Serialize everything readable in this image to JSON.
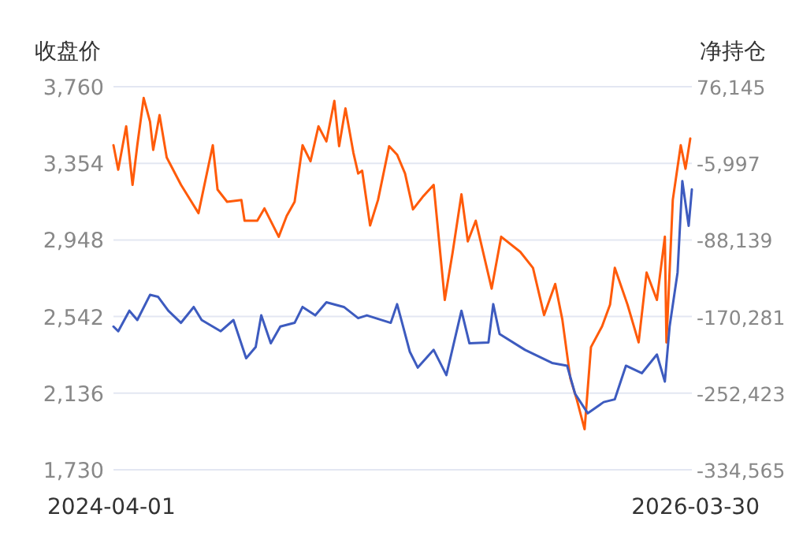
{
  "chart_data": {
    "type": "line",
    "ylabel": "收盘价",
    "y2label": "净持仓",
    "grid": "y",
    "line_style": "solid",
    "xlim": [
      "2024-04-01",
      "2026-03-30"
    ],
    "xticks": [
      "2024-04-01",
      "2026-03-30"
    ],
    "ylim": [
      1730,
      3760
    ],
    "yticks": [
      {
        "value": 1730,
        "label": "1,730"
      },
      {
        "value": 2136,
        "label": "2,136"
      },
      {
        "value": 2542,
        "label": "2,542"
      },
      {
        "value": 2948,
        "label": "2,948"
      },
      {
        "value": 3354,
        "label": "3,354"
      },
      {
        "value": 3760,
        "label": "3,760"
      }
    ],
    "y2lim": [
      -334565,
      76145
    ],
    "y2ticks": [
      {
        "value": -334565,
        "label": "-334,565"
      },
      {
        "value": -252423,
        "label": "-252,423"
      },
      {
        "value": -170281,
        "label": "-170,281"
      },
      {
        "value": -88139,
        "label": "-88,139"
      },
      {
        "value": -5997,
        "label": "-5,997"
      },
      {
        "value": 76145,
        "label": "76,145"
      }
    ],
    "series": [
      {
        "color": "#ff5b0a",
        "axis": "y",
        "x": [
          "2024-04-01",
          "2024-04-07",
          "2024-04-17",
          "2024-04-25",
          "2024-05-01",
          "2024-05-09",
          "2024-05-17",
          "2024-05-21",
          "2024-05-29",
          "2024-06-07",
          "2024-06-25",
          "2024-07-17",
          "2024-08-04",
          "2024-08-10",
          "2024-08-22",
          "2024-09-09",
          "2024-09-13",
          "2024-09-29",
          "2024-10-08",
          "2024-10-26",
          "2024-11-05",
          "2024-11-15",
          "2024-11-25",
          "2024-12-05",
          "2024-12-15",
          "2024-12-25",
          "2025-01-04",
          "2025-01-10",
          "2025-01-18",
          "2025-01-28",
          "2025-02-03",
          "2025-02-08",
          "2025-02-18",
          "2025-02-28",
          "2025-03-14",
          "2025-03-24",
          "2025-04-03",
          "2025-04-13",
          "2025-04-25",
          "2025-05-09",
          "2025-05-23",
          "2025-06-02",
          "2025-06-13",
          "2025-06-21",
          "2025-07-01",
          "2025-07-21",
          "2025-08-02",
          "2025-08-26",
          "2025-09-11",
          "2025-09-25",
          "2025-10-09",
          "2025-10-18",
          "2025-10-28",
          "2025-11-05",
          "2025-11-15",
          "2025-11-23",
          "2025-12-07",
          "2025-12-17",
          "2025-12-23",
          "2026-01-08",
          "2026-01-22",
          "2026-02-01",
          "2026-02-14",
          "2026-02-24",
          "2026-02-26",
          "2026-03-06",
          "2026-03-16",
          "2026-03-22",
          "2026-03-28"
        ],
        "values": [
          3450,
          3320,
          3550,
          3240,
          3450,
          3700,
          3575,
          3425,
          3610,
          3385,
          3240,
          3090,
          3450,
          3215,
          3150,
          3160,
          3050,
          3050,
          3115,
          2965,
          3075,
          3150,
          3450,
          3365,
          3550,
          3470,
          3685,
          3445,
          3645,
          3410,
          3300,
          3315,
          3025,
          3160,
          3445,
          3400,
          3300,
          3110,
          3175,
          3240,
          2630,
          2885,
          3190,
          2940,
          3050,
          2690,
          2965,
          2885,
          2800,
          2550,
          2715,
          2525,
          2215,
          2105,
          1945,
          2380,
          2490,
          2605,
          2800,
          2605,
          2405,
          2775,
          2630,
          2965,
          2405,
          3160,
          3450,
          3325,
          3485
        ]
      },
      {
        "color": "#3d5bbf",
        "axis": "y2",
        "x": [
          "2024-04-01",
          "2024-04-07",
          "2024-04-21",
          "2024-05-01",
          "2024-05-17",
          "2024-05-27",
          "2024-06-09",
          "2024-06-25",
          "2024-07-11",
          "2024-07-21",
          "2024-08-14",
          "2024-08-30",
          "2024-09-15",
          "2024-09-27",
          "2024-10-04",
          "2024-10-16",
          "2024-10-28",
          "2024-11-15",
          "2024-11-25",
          "2024-12-11",
          "2024-12-25",
          "2025-01-16",
          "2025-02-03",
          "2025-02-14",
          "2025-03-16",
          "2025-03-24",
          "2025-04-09",
          "2025-04-19",
          "2025-05-09",
          "2025-05-25",
          "2025-06-13",
          "2025-06-23",
          "2025-07-17",
          "2025-07-23",
          "2025-07-31",
          "2025-09-01",
          "2025-10-05",
          "2025-10-24",
          "2025-11-03",
          "2025-11-19",
          "2025-12-09",
          "2025-12-23",
          "2026-01-06",
          "2026-01-26",
          "2026-02-14",
          "2026-02-24",
          "2026-03-02",
          "2026-03-12",
          "2026-03-18",
          "2026-03-26",
          "2026-03-30"
        ],
        "values": [
          -181000,
          -186000,
          -164000,
          -174000,
          -147000,
          -149000,
          -164000,
          -177000,
          -160000,
          -174000,
          -186000,
          -174000,
          -215000,
          -203000,
          -169000,
          -199000,
          -181000,
          -177000,
          -160000,
          -169000,
          -155000,
          -160000,
          -172000,
          -169000,
          -177000,
          -157000,
          -208000,
          -225000,
          -206000,
          -233000,
          -164000,
          -199000,
          -198000,
          -157000,
          -189000,
          -206000,
          -220000,
          -223000,
          -253000,
          -274000,
          -262000,
          -259000,
          -223000,
          -231000,
          -211000,
          -240000,
          -181000,
          -123000,
          -25000,
          -73000,
          -34000
        ]
      }
    ]
  }
}
